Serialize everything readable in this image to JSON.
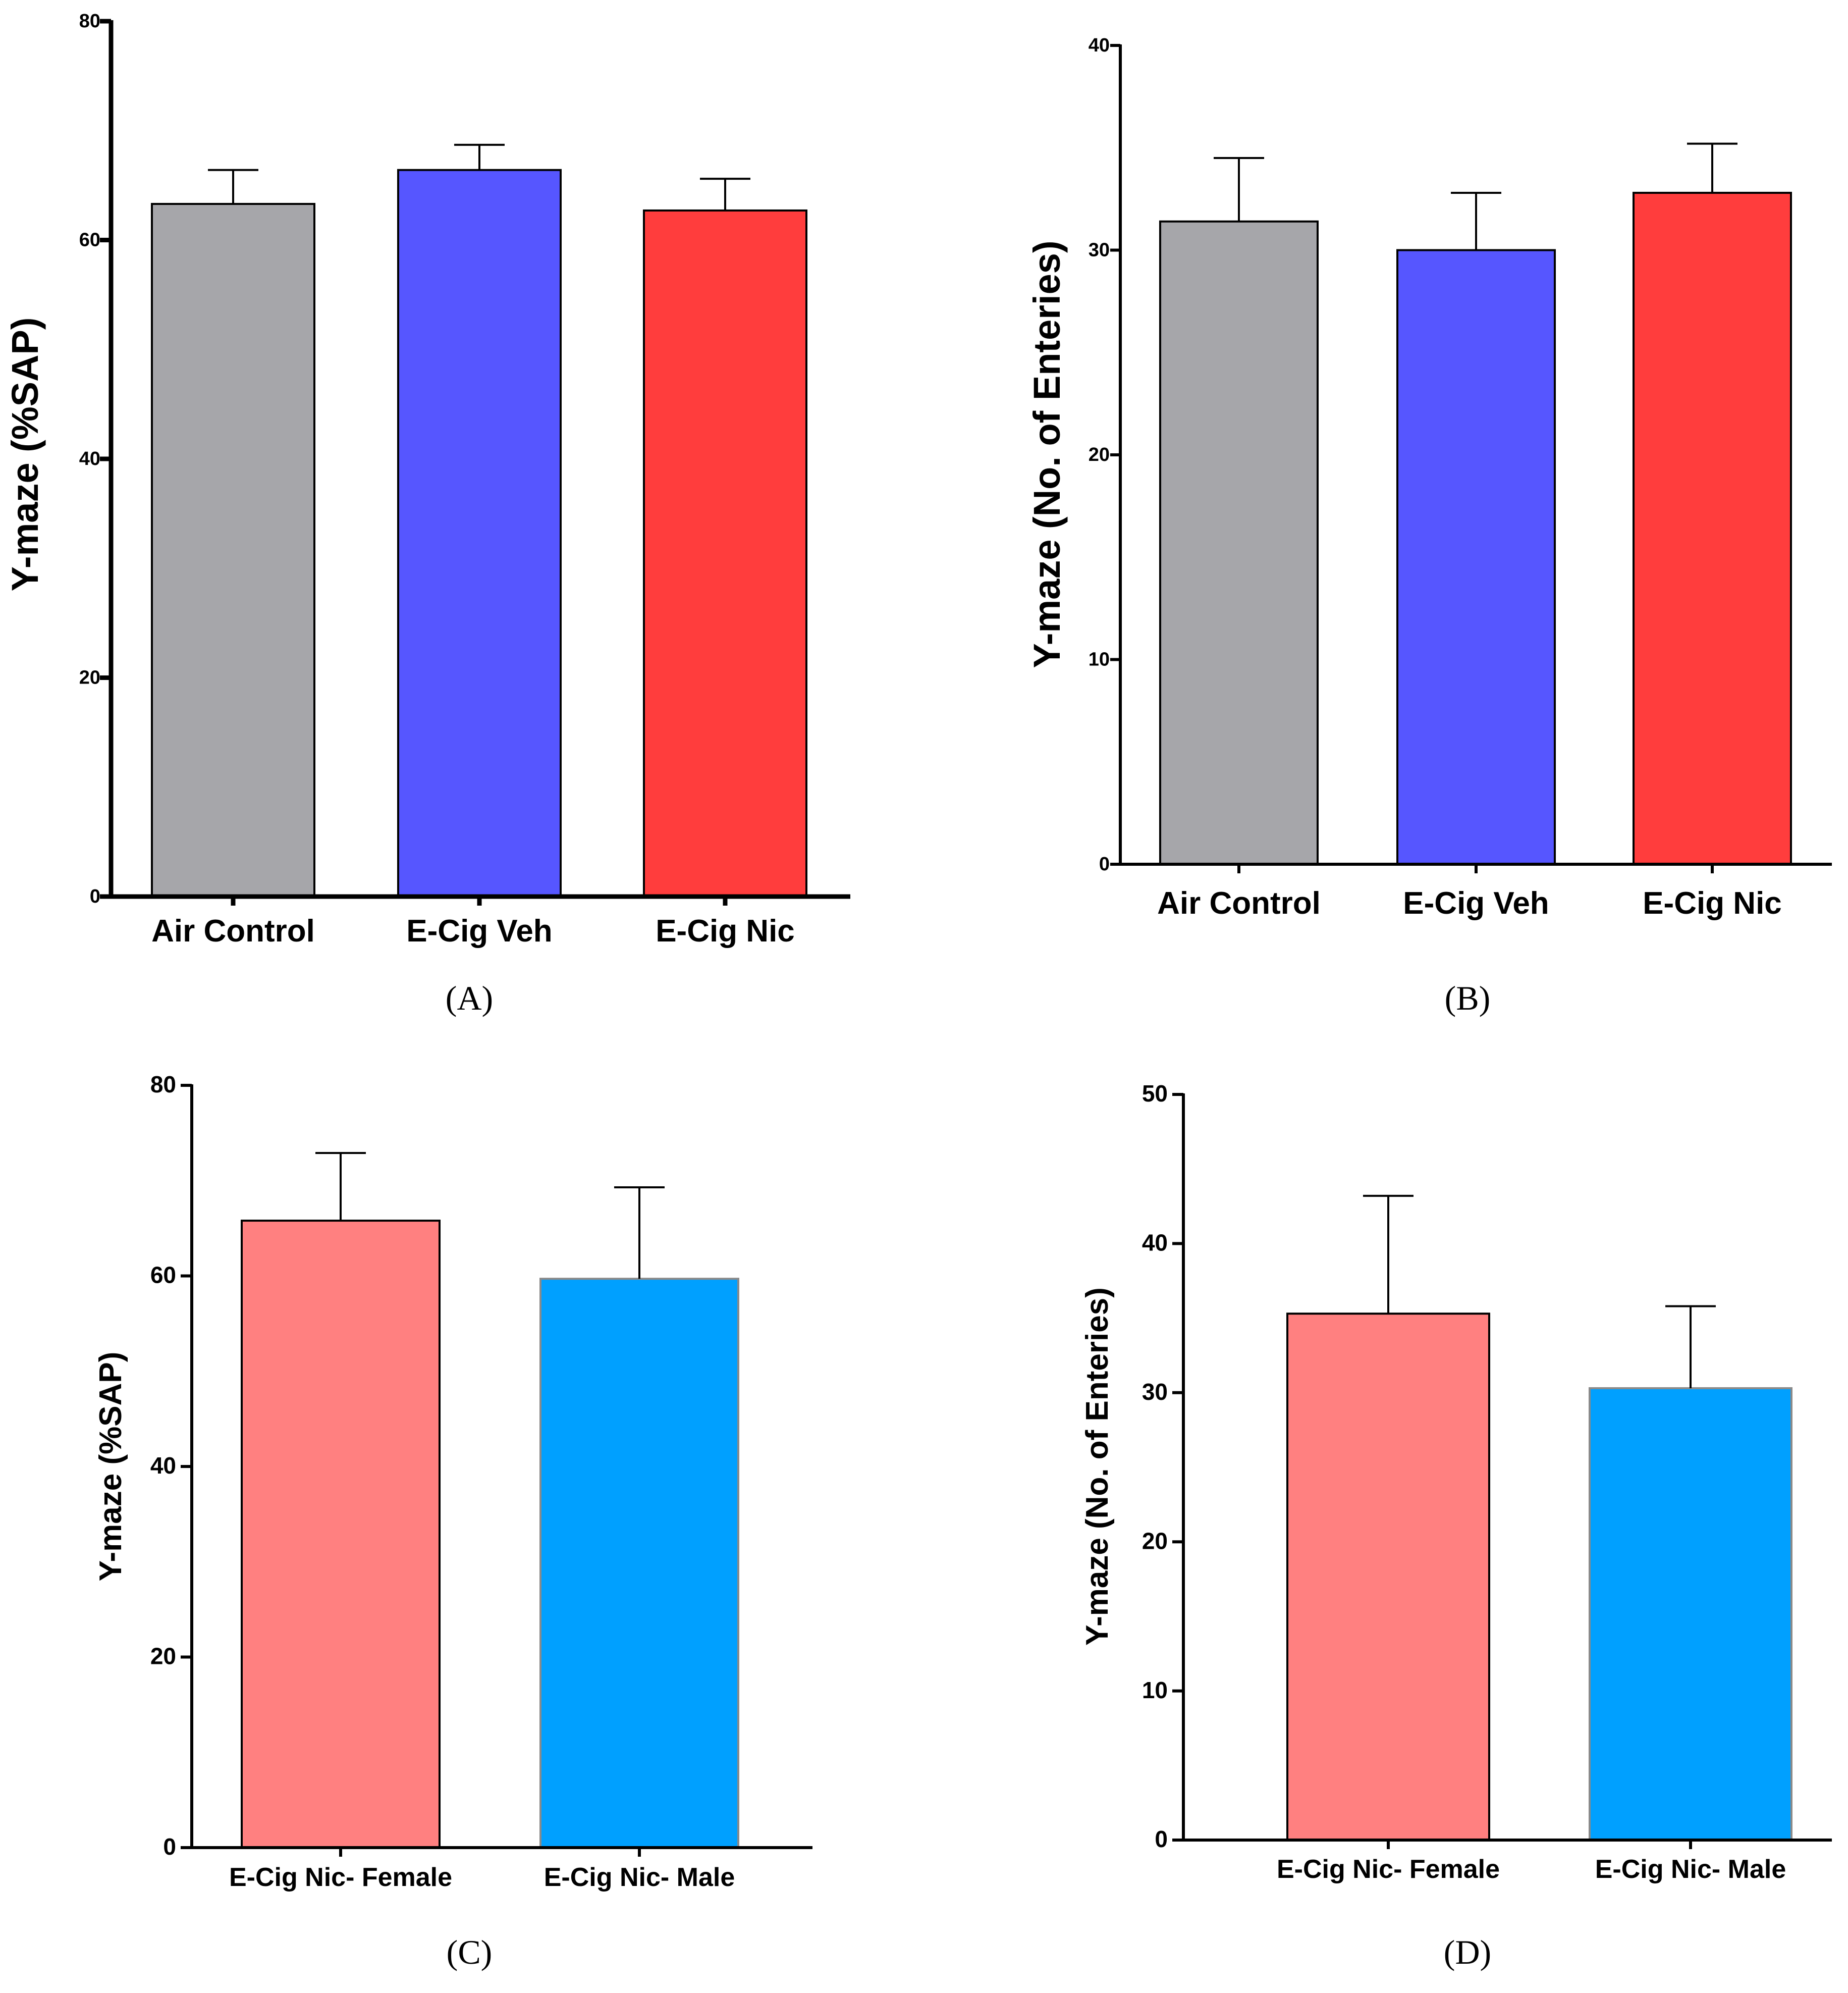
{
  "chart_data": [
    {
      "id": "A",
      "type": "bar",
      "panel_label": "(A)",
      "ylabel": "Y-maze (%SAP)",
      "categories": [
        "Air Control",
        "E-Cig Veh",
        "E-Cig Nic"
      ],
      "values": [
        63.3,
        66.4,
        62.7
      ],
      "errors": [
        3.1,
        2.3,
        2.9
      ],
      "colors": [
        "#a6a6aa",
        "#5656ff",
        "#ff3d3d"
      ],
      "ylim": [
        0,
        80
      ],
      "yticks": [
        "0",
        "20",
        "40",
        "60",
        "80"
      ]
    },
    {
      "id": "B",
      "type": "bar",
      "panel_label": "(B)",
      "ylabel": "Y-maze (No. of Enteries)",
      "categories": [
        "Air Control",
        "E-Cig Veh",
        "E-Cig Nic"
      ],
      "values": [
        31.4,
        30.0,
        32.8
      ],
      "errors": [
        3.1,
        2.8,
        2.4
      ],
      "colors": [
        "#a6a6aa",
        "#5656ff",
        "#ff3d3d"
      ],
      "ylim": [
        0,
        40
      ],
      "yticks": [
        "0",
        "10",
        "20",
        "30",
        "40"
      ]
    },
    {
      "id": "C",
      "type": "bar",
      "panel_label": "(C)",
      "ylabel": "Y-maze (%SAP)",
      "categories": [
        "E-Cig Nic- Female",
        "E-Cig Nic- Male"
      ],
      "values": [
        65.8,
        59.7
      ],
      "errors": [
        7.1,
        9.6
      ],
      "colors": [
        "#ff8080",
        "#00a0ff"
      ],
      "ylim": [
        0,
        80
      ],
      "yticks": [
        "0",
        "20",
        "40",
        "60",
        "80"
      ]
    },
    {
      "id": "D",
      "type": "bar",
      "panel_label": "(D)",
      "ylabel": "Y-maze (No. of Enteries)",
      "categories": [
        "E-Cig Nic- Female",
        "E-Cig Nic- Male"
      ],
      "values": [
        35.3,
        30.3
      ],
      "errors": [
        7.9,
        5.5
      ],
      "colors": [
        "#ff8080",
        "#00a0ff"
      ],
      "ylim": [
        0,
        50
      ],
      "yticks": [
        "0",
        "10",
        "20",
        "30",
        "40",
        "50"
      ]
    }
  ]
}
